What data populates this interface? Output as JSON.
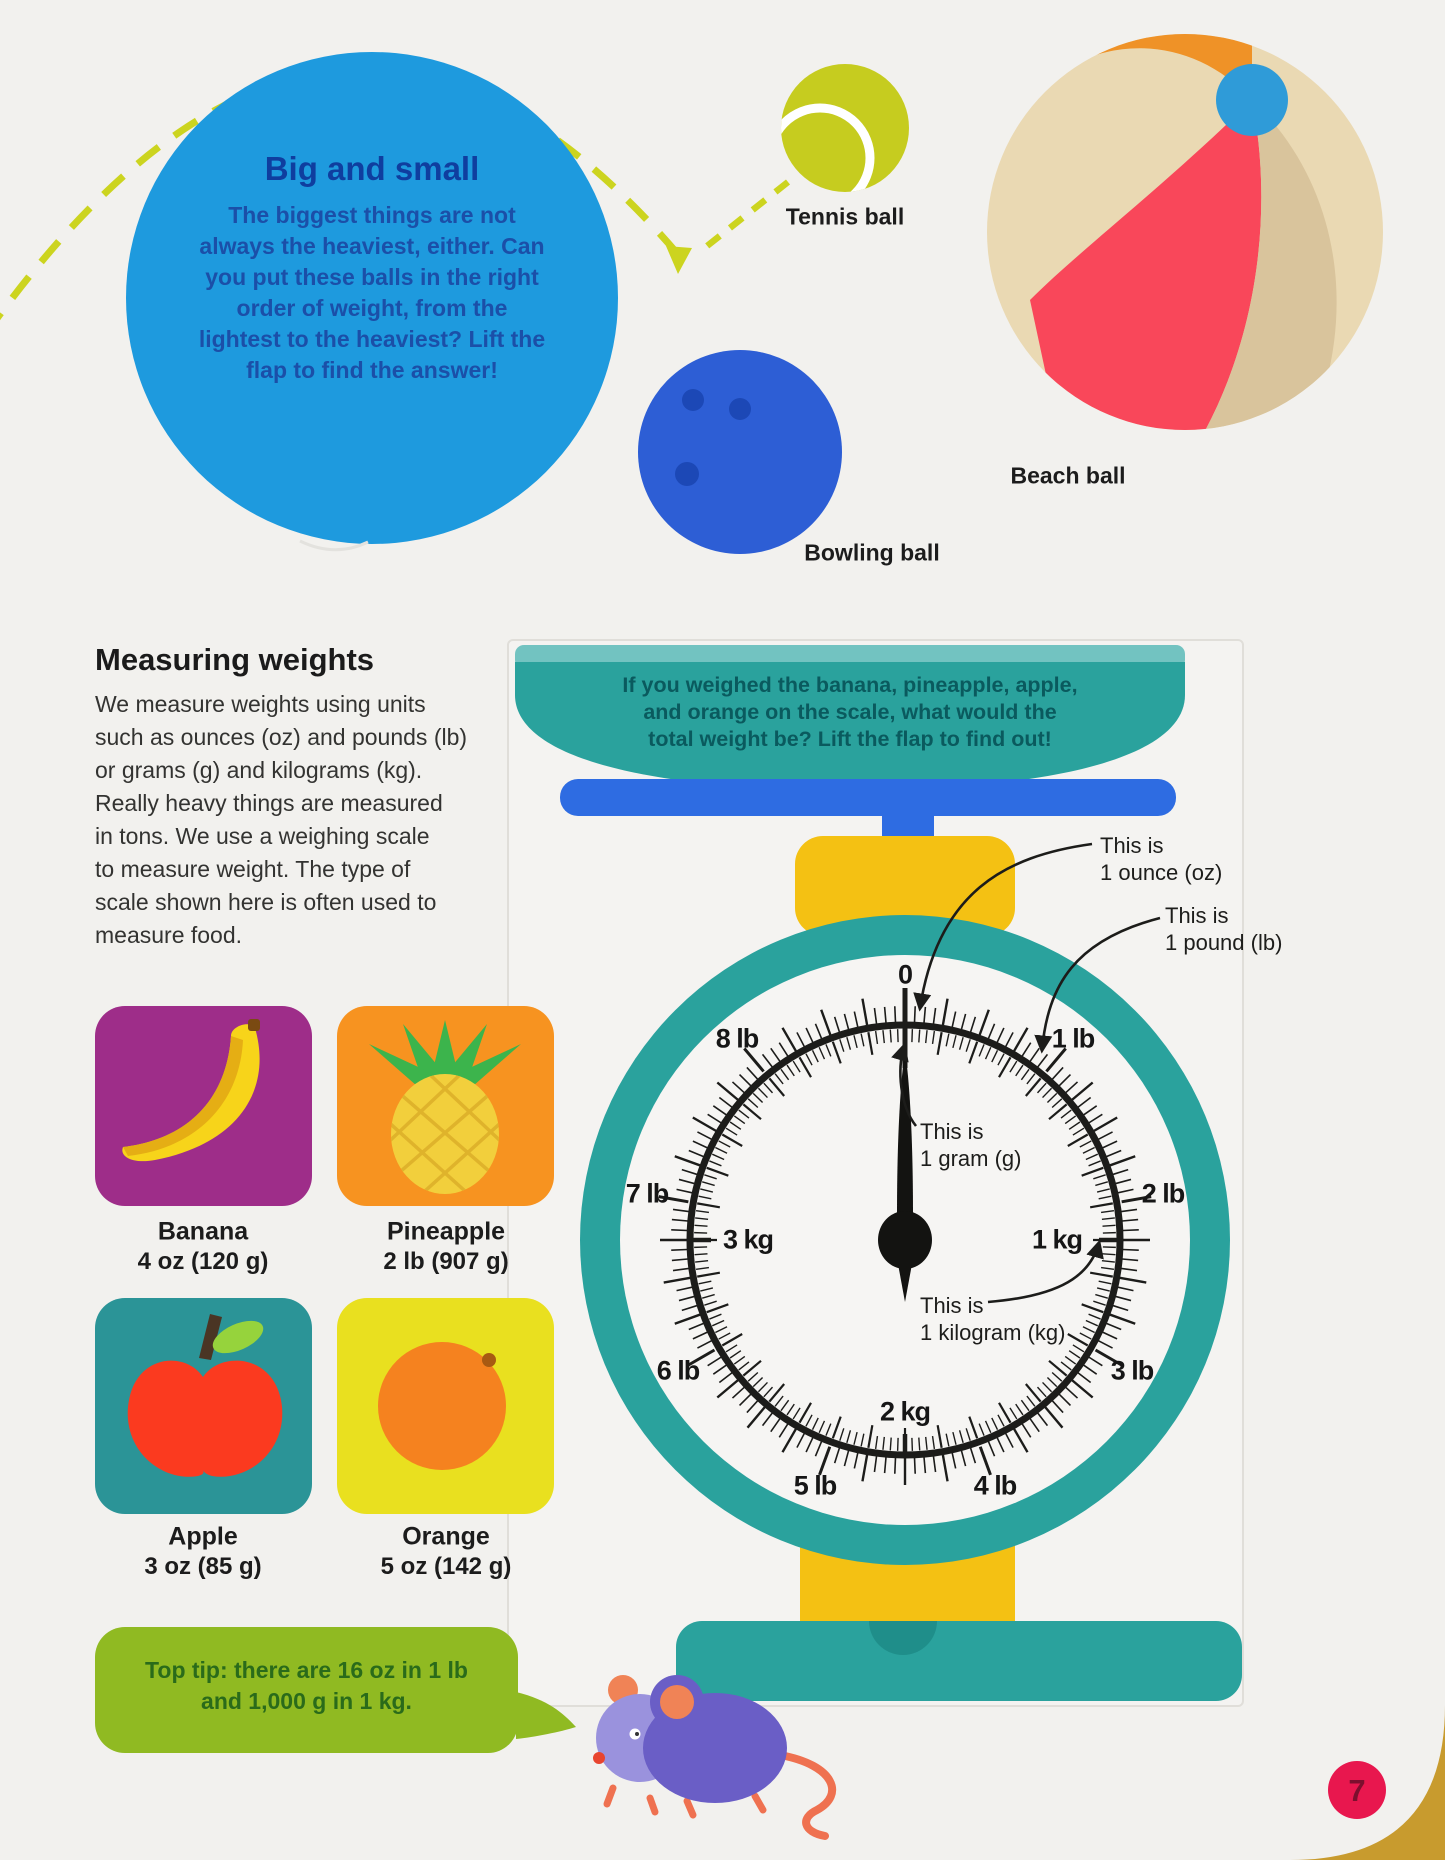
{
  "intro": {
    "title": "Big and small",
    "body": "The biggest things are not\nalways the heaviest, either. Can\nyou put these balls in the right\norder of weight, from the\nlightest to the heaviest? Lift the\nflap to find the answer!"
  },
  "balls": {
    "tennis": "Tennis ball",
    "bowling": "Bowling ball",
    "beach": "Beach ball"
  },
  "measuring": {
    "heading": "Measuring weights",
    "body": "We measure weights using units\nsuch as ounces (oz) and pounds (lb)\nor grams (g) and kilograms (kg).\nReally heavy things are measured\nin tons. We use a weighing scale\nto measure weight. The type of\nscale shown here is often used to\nmeasure food."
  },
  "fruits": [
    {
      "name": "Banana",
      "weight": "4 oz (120 g)"
    },
    {
      "name": "Pineapple",
      "weight": "2 lb (907 g)"
    },
    {
      "name": "Apple",
      "weight": "3 oz (85 g)"
    },
    {
      "name": "Orange",
      "weight": "5 oz (142 g)"
    }
  ],
  "scale": {
    "question": "If you weighed the banana, pineapple, apple,\nand orange on the scale, what would the\ntotal weight be? Lift the flap to find out!",
    "annotations": {
      "ounce": "This is\n1 ounce (oz)",
      "pound": "This is\n1 pound (lb)",
      "gram": "This is\n1 gram (g)",
      "kilogram": "This is\n1 kilogram (kg)"
    },
    "dial": {
      "zero": "0",
      "lb": [
        "1 lb",
        "2 lb",
        "3 lb",
        "4 lb",
        "5 lb",
        "6 lb",
        "7 lb",
        "8 lb"
      ],
      "kg": [
        "1 kg",
        "2 kg",
        "3 kg"
      ]
    }
  },
  "tip": {
    "text": "Top tip: there are 16 oz in 1 lb\nand 1,000 g in 1 kg."
  },
  "page": {
    "number": "7"
  },
  "colors": {
    "flap_blue": "#1e9ade",
    "scale_teal": "#2aa29d",
    "accent_yellow": "#f4c113",
    "platform_blue": "#2e6ce2",
    "tip_green": "#90ba22",
    "page_badge_red": "#e8174e"
  }
}
